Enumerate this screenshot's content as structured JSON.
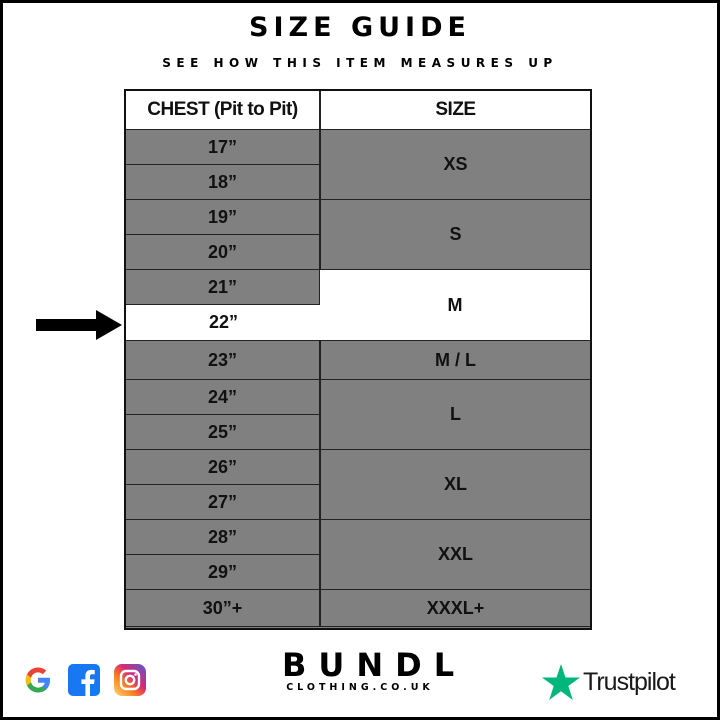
{
  "header": {
    "title": "SIZE GUIDE",
    "subtitle": "SEE HOW THIS ITEM MEASURES UP"
  },
  "table": {
    "columns": [
      "CHEST (Pit to Pit)",
      "SIZE"
    ],
    "chest_rows": [
      {
        "label": "17”",
        "highlight": false
      },
      {
        "label": "18”",
        "highlight": false
      },
      {
        "label": "19”",
        "highlight": false
      },
      {
        "label": "20”",
        "highlight": false
      },
      {
        "label": "21”",
        "highlight": false
      },
      {
        "label": "22”",
        "highlight": true
      },
      {
        "label": "23”",
        "highlight": false
      },
      {
        "label": "24”",
        "highlight": false
      },
      {
        "label": "25”",
        "highlight": false
      },
      {
        "label": "26”",
        "highlight": false
      },
      {
        "label": "27”",
        "highlight": false
      },
      {
        "label": "28”",
        "highlight": false
      },
      {
        "label": "29”",
        "highlight": false
      },
      {
        "label": "30”+",
        "highlight": false
      }
    ],
    "sizes": [
      {
        "label": "XS",
        "rows": 2,
        "highlight": false
      },
      {
        "label": "S",
        "rows": 2,
        "highlight": false
      },
      {
        "label": "M",
        "rows": 2,
        "highlight": true
      },
      {
        "label": "M / L",
        "rows": 1,
        "highlight": false
      },
      {
        "label": "L",
        "rows": 2,
        "highlight": false
      },
      {
        "label": "XL",
        "rows": 2,
        "highlight": false
      },
      {
        "label": "XXL",
        "rows": 2,
        "highlight": false
      },
      {
        "label": "XXXL+",
        "rows": 1,
        "highlight": false
      }
    ],
    "colors": {
      "row": "#808080",
      "highlight": "#ffffff"
    }
  },
  "footer": {
    "social_icons": [
      "google-icon",
      "facebook-icon",
      "instagram-icon"
    ],
    "brand_name": "BUNDL",
    "brand_sub": "CLOTHING.CO.UK",
    "trustpilot": "Trustpilot",
    "trustpilot_color": "#00b67a"
  }
}
